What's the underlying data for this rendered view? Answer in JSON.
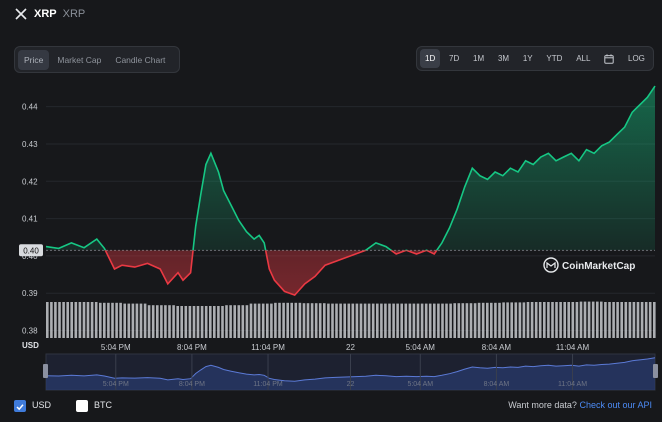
{
  "header": {
    "name": "XRP",
    "symbol": "XRP"
  },
  "tabs": [
    "Price",
    "Market Cap",
    "Candle Chart"
  ],
  "ranges": [
    "1D",
    "7D",
    "1M",
    "3M",
    "1Y",
    "YTD",
    "ALL",
    "LOG"
  ],
  "active_range": "1D",
  "watermark": "CoinMarketCap",
  "currency_unit": "USD",
  "current_price_tag": "0.40",
  "colors": {
    "up": "#16c784",
    "down": "#ea3943",
    "accent": "#3861fb",
    "bg": "#17181b"
  },
  "chart_data": {
    "type": "line",
    "title": "",
    "xlabel": "",
    "ylabel": "USD",
    "ylim": [
      0.378,
      0.445
    ],
    "baseline": 0.4015,
    "ytick_labels": [
      "0.44",
      "0.43",
      "0.42",
      "0.41",
      "0.40",
      "0.39",
      "0.38"
    ],
    "ytick_values": [
      0.44,
      0.43,
      0.42,
      0.41,
      0.4,
      0.39,
      0.38
    ],
    "xtick_labels": [
      "5:04 PM",
      "8:04 PM",
      "11:04 PM",
      "22",
      "5:04 AM",
      "8:04 AM",
      "11:04 AM"
    ],
    "xtick_hours": [
      2.75,
      5.75,
      8.75,
      12.0,
      14.75,
      17.75,
      20.75
    ],
    "x_hours_span": [
      0,
      24.0
    ],
    "x_hours": [
      0,
      0.5,
      1,
      1.5,
      2,
      2.3,
      2.7,
      3,
      3.5,
      4,
      4.5,
      4.8,
      5.2,
      5.4,
      5.7,
      5.9,
      6.1,
      6.3,
      6.5,
      6.8,
      7,
      7.3,
      7.6,
      7.9,
      8.2,
      8.4,
      8.6,
      8.8,
      9,
      9.4,
      9.8,
      10.2,
      10.6,
      11,
      11.4,
      11.8,
      12.2,
      12.6,
      13,
      13.4,
      13.8,
      14.2,
      14.6,
      15,
      15.3,
      15.6,
      15.9,
      16.2,
      16.5,
      16.8,
      17.1,
      17.4,
      17.7,
      18,
      18.3,
      18.6,
      18.9,
      19.2,
      19.5,
      19.8,
      20.1,
      20.4,
      20.7,
      21,
      21.3,
      21.6,
      21.9,
      22.2,
      22.5,
      22.8,
      23.1,
      23.4,
      23.7,
      24
    ],
    "values": [
      0.4025,
      0.402,
      0.4035,
      0.4022,
      0.4045,
      0.402,
      0.3965,
      0.3975,
      0.397,
      0.398,
      0.3965,
      0.3925,
      0.3955,
      0.3935,
      0.3955,
      0.408,
      0.4165,
      0.4245,
      0.4275,
      0.4225,
      0.4175,
      0.4135,
      0.4095,
      0.4065,
      0.4045,
      0.4055,
      0.4035,
      0.3965,
      0.3935,
      0.3905,
      0.3895,
      0.3925,
      0.3945,
      0.3975,
      0.3985,
      0.3995,
      0.4005,
      0.4015,
      0.4035,
      0.4025,
      0.4005,
      0.4015,
      0.4005,
      0.4015,
      0.4005,
      0.4035,
      0.4075,
      0.4125,
      0.4185,
      0.4235,
      0.4215,
      0.4205,
      0.4225,
      0.4215,
      0.4235,
      0.4225,
      0.4255,
      0.4245,
      0.4265,
      0.4275,
      0.4255,
      0.4265,
      0.4275,
      0.4255,
      0.4285,
      0.4275,
      0.4295,
      0.4305,
      0.4325,
      0.4345,
      0.4385,
      0.4405,
      0.4425,
      0.4455
    ],
    "volume_values": [
      0.9,
      0.9,
      0.88,
      0.86,
      0.82,
      0.8,
      0.8,
      0.82,
      0.86,
      0.88,
      0.87,
      0.86,
      0.86,
      0.86,
      0.86,
      0.86,
      0.87,
      0.88,
      0.89,
      0.9,
      0.9,
      0.91,
      0.9,
      0.9
    ]
  }
}
